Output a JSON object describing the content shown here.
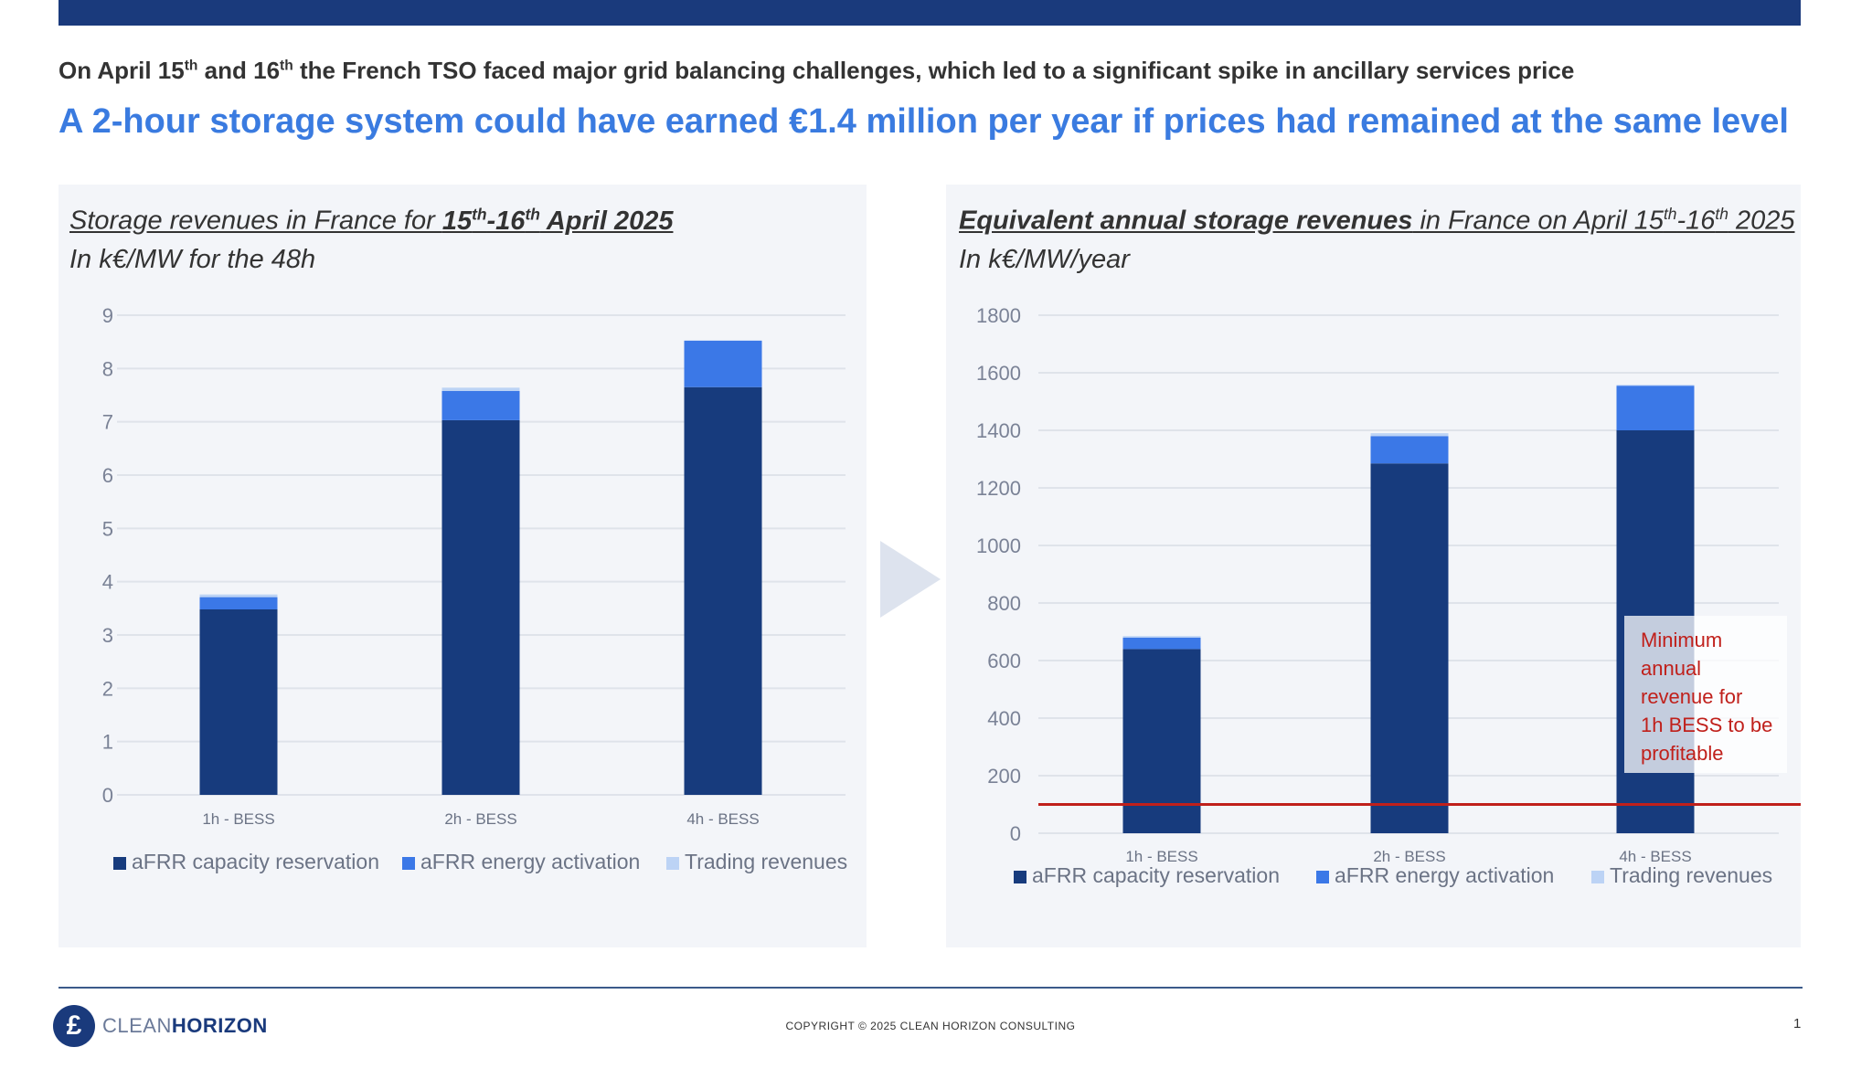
{
  "header": {
    "context_parts": [
      "On April 15",
      "th",
      " and 16",
      "th",
      " the French TSO faced major grid balancing challenges, which led to a significant spike in ancillary services price"
    ],
    "headline": "A 2-hour storage system could have earned €1.4 million per year if prices had remained at the same level"
  },
  "colors": {
    "capacity": "#173b7d",
    "energy": "#3b78e7",
    "trading": "#bcd3f5",
    "threshold": "#c0201b",
    "headline": "#3a7be0",
    "topbar": "#1a3a7c"
  },
  "chart_data": [
    {
      "type": "bar",
      "stacked": true,
      "title_parts": [
        "Storage revenues in France for ",
        "15",
        "th",
        "-16",
        "th",
        " April 2025"
      ],
      "subtitle": "In k€/MW for the 48h",
      "categories": [
        "1h - BESS",
        "2h - BESS",
        "4h - BESS"
      ],
      "ylim": [
        0,
        9
      ],
      "yticks": [
        "0",
        "1",
        "2",
        "3",
        "4",
        "5",
        "6",
        "7",
        "8",
        "9"
      ],
      "grid": true,
      "legend_position": "bottom",
      "series": [
        {
          "name": "aFRR capacity reservation",
          "values": [
            3.48,
            7.03,
            7.65
          ]
        },
        {
          "name": "aFRR energy activation",
          "values": [
            0.23,
            0.55,
            0.87
          ]
        },
        {
          "name": "Trading revenues",
          "values": [
            0.05,
            0.06,
            0.01
          ]
        }
      ]
    },
    {
      "type": "bar",
      "stacked": true,
      "title_parts": [
        "Equivalent annual storage revenues",
        " in France on April 15",
        "th",
        "-16",
        "th",
        " 2025"
      ],
      "subtitle": "In k€/MW/year",
      "categories": [
        "1h - BESS",
        "2h - BESS",
        "4h - BESS"
      ],
      "ylim": [
        0,
        1800
      ],
      "yticks": [
        "0",
        "200",
        "400",
        "600",
        "800",
        "1000",
        "1200",
        "1400",
        "1600",
        "1800"
      ],
      "grid": true,
      "legend_position": "bottom",
      "series": [
        {
          "name": "aFRR capacity reservation",
          "values": [
            640,
            1285,
            1400
          ]
        },
        {
          "name": "aFRR energy activation",
          "values": [
            40,
            95,
            155
          ]
        },
        {
          "name": "Trading revenues",
          "values": [
            5,
            10,
            3
          ]
        }
      ],
      "threshold": {
        "value": 100,
        "annotation": "Minimum annual revenue for 1h BESS to be profitable",
        "annotation_lines": [
          "Minimum",
          "annual",
          "revenue for",
          "1h BESS to be",
          "profitable"
        ]
      }
    }
  ],
  "footer": {
    "logo_text_light": "CLEAN",
    "logo_text_bold": "HORIZON",
    "copyright": "COPYRIGHT © 2025 CLEAN HORIZON CONSULTING",
    "page_number": "1"
  }
}
